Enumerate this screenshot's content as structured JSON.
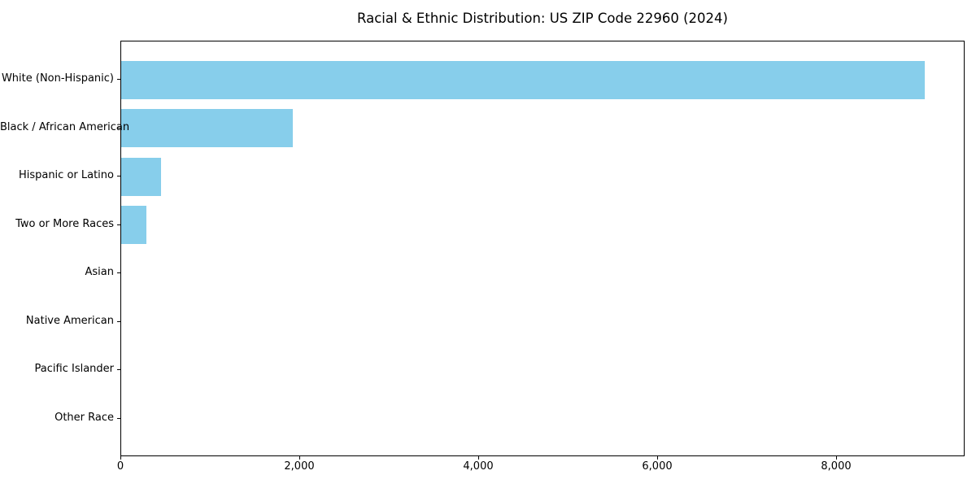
{
  "chart_data": {
    "type": "bar",
    "orientation": "horizontal",
    "title": "Racial & Ethnic Distribution: US ZIP Code 22960 (2024)",
    "categories": [
      "White (Non-Hispanic)",
      "Black / African American",
      "Hispanic or Latino",
      "Two or More Races",
      "Asian",
      "Native American",
      "Pacific Islander",
      "Other Race"
    ],
    "values": [
      8980,
      1920,
      445,
      285,
      0,
      0,
      0,
      0
    ],
    "xlabel": "",
    "ylabel": "",
    "xlim": [
      0,
      9436
    ],
    "xtick_values": [
      0,
      2000,
      4000,
      6000,
      8000
    ],
    "xtick_labels": [
      "0",
      "2,000",
      "4,000",
      "6,000",
      "8,000"
    ],
    "grid": false,
    "legend": "none",
    "bar_color": "#87CEEB",
    "frame_color": "#000000",
    "text_color": "#000000",
    "background_color": "#ffffff"
  }
}
